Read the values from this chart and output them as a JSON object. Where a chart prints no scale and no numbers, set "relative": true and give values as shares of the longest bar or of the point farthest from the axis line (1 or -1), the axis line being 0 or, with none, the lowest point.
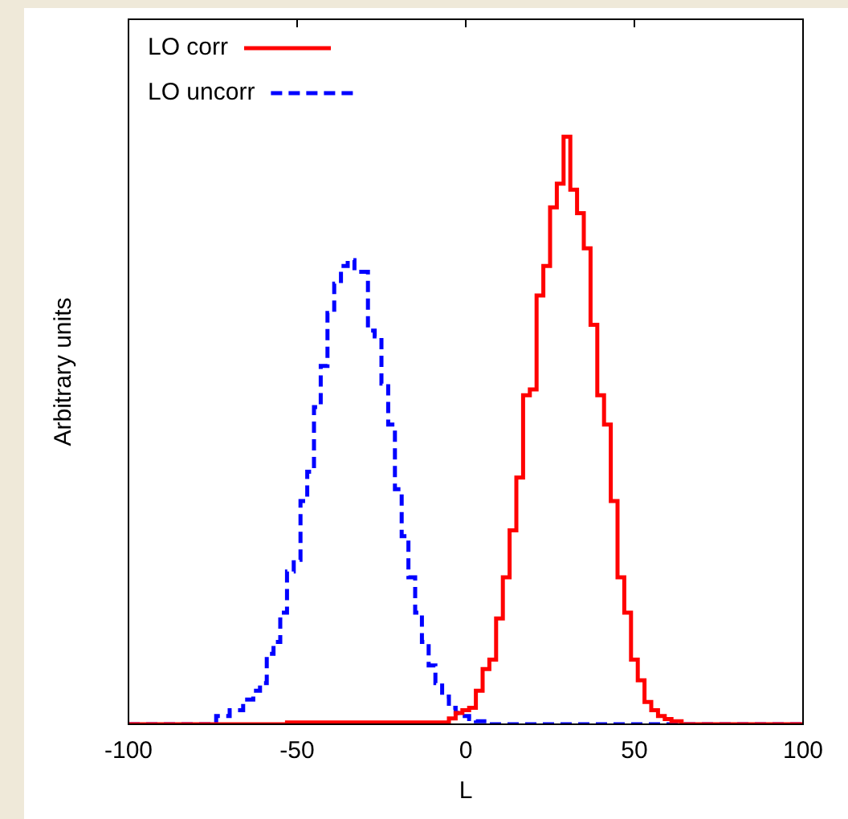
{
  "chart_data": {
    "type": "step",
    "relative": true,
    "xlabel": "L",
    "ylabel": "Arbitrary units",
    "xlim": [
      -100,
      100
    ],
    "xticks": [
      -100,
      -50,
      0,
      50,
      100
    ],
    "legend": "top left",
    "grid": false,
    "series": [
      {
        "name": "LO corr",
        "color": "#ff0000",
        "line_style": "solid",
        "x": [
          -100,
          -6,
          -4,
          -2,
          0,
          2,
          4,
          6,
          8,
          10,
          12,
          14,
          16,
          18,
          20,
          22,
          24,
          26,
          28,
          30,
          32,
          34,
          36,
          38,
          40,
          42,
          44,
          46,
          48,
          50,
          52,
          54,
          56,
          58,
          60,
          62,
          66,
          100
        ],
        "values": [
          0,
          0.003,
          0.01,
          0.019,
          0.024,
          0.028,
          0.057,
          0.094,
          0.11,
          0.18,
          0.25,
          0.33,
          0.42,
          0.56,
          0.57,
          0.73,
          0.78,
          0.88,
          0.92,
          1,
          0.91,
          0.87,
          0.81,
          0.68,
          0.56,
          0.51,
          0.38,
          0.25,
          0.19,
          0.11,
          0.075,
          0.038,
          0.024,
          0.014,
          0.009,
          0.005,
          0,
          0
        ]
      },
      {
        "name": "LO uncorr",
        "color": "#0000ff",
        "line_style": "dashed",
        "x": [
          -100,
          -76,
          -72,
          -68,
          -64,
          -62,
          -60,
          -58,
          -56,
          -54,
          -52,
          -50,
          -48,
          -46,
          -44,
          -42,
          -40,
          -38,
          -36,
          -34,
          -32,
          -30,
          -28,
          -26,
          -24,
          -22,
          -20,
          -18,
          -16,
          -14,
          -12,
          -10,
          -8,
          -6,
          -4,
          -2,
          0,
          2,
          4,
          10,
          100
        ],
        "values": [
          0,
          0,
          0.014,
          0.024,
          0.042,
          0.057,
          0.07,
          0.12,
          0.14,
          0.19,
          0.26,
          0.28,
          0.38,
          0.43,
          0.54,
          0.61,
          0.7,
          0.75,
          0.78,
          0.79,
          0.77,
          0.77,
          0.67,
          0.66,
          0.58,
          0.51,
          0.4,
          0.32,
          0.25,
          0.19,
          0.14,
          0.1,
          0.07,
          0.047,
          0.028,
          0.019,
          0.014,
          0.009,
          0.005,
          0,
          0
        ]
      }
    ]
  }
}
